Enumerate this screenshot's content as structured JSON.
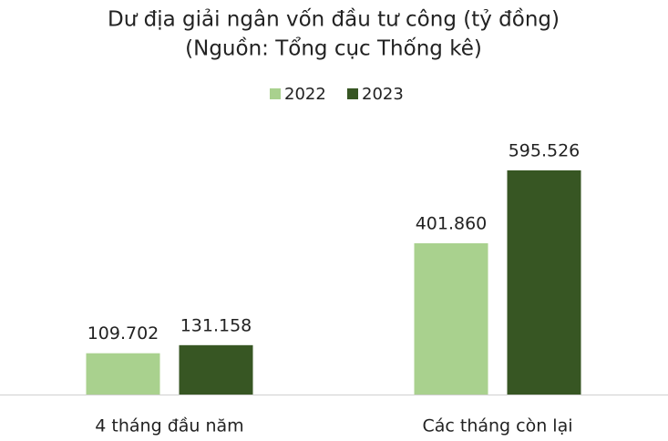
{
  "chart_data": {
    "type": "bar",
    "title": "Dư địa giải ngân vốn đầu tư công (tỷ đồng)",
    "subtitle": "(Nguồn: Tổng cục Thống kê)",
    "categories": [
      "4 tháng đầu năm",
      "Các tháng còn lại"
    ],
    "series": [
      {
        "name": "2022",
        "color": "#a9d18e",
        "values": [
          109702,
          401860
        ],
        "value_labels": [
          "109.702",
          "401.860"
        ]
      },
      {
        "name": "2023",
        "color": "#375623",
        "values": [
          131158,
          595526
        ],
        "value_labels": [
          "131.158",
          "595.526"
        ]
      }
    ]
  }
}
